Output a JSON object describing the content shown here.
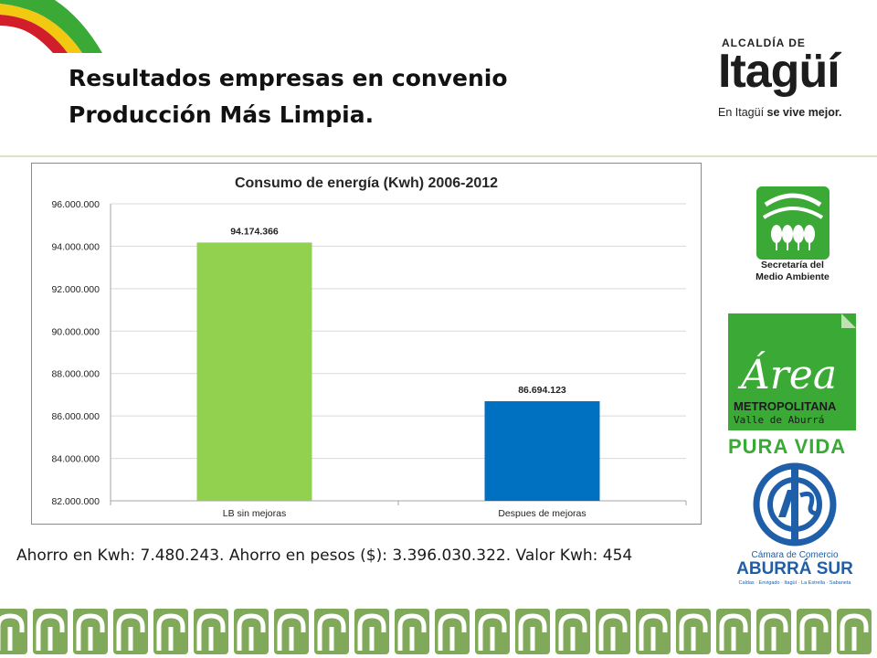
{
  "slide": {
    "title_lines": [
      "Resultados empresas en convenio",
      "Producción Más Limpia."
    ],
    "caption": "Ahorro en Kwh: 7.480.243. Ahorro en pesos ($): 3.396.030.322. Valor Kwh: 454"
  },
  "logos": {
    "alcaldia": {
      "pre": "ALCALDÍA DE",
      "name": "Itagüí",
      "slogan_plain": "En Itagüí ",
      "slogan_bold": "se vive mejor."
    },
    "secretaria": {
      "line1": "Secretaría del",
      "line2": "Medio Ambiente"
    },
    "area_metropolitana": {
      "script": "Área",
      "line1": "METROPOLITANA",
      "line2": "Valle de Aburrá",
      "tagline": "PURA VIDA"
    },
    "camara": {
      "line1": "Cámara de Comercio",
      "line2": "ABURRÁ SUR",
      "line3": "Caldas · Envigado · Itagüí · La Estrella · Sabaneta"
    }
  },
  "colors": {
    "brand_green": "#3aa935",
    "bar_green": "#92d050",
    "bar_blue": "#0070c0",
    "chart_border": "#8a8a8a",
    "grid": "#d9d9d9",
    "footer_green": "#6a9a3c"
  },
  "chart_data": {
    "type": "bar",
    "title": "Consumo de energía (Kwh) 2006-2012",
    "categories": [
      "LB sin mejoras",
      "Despues de mejoras"
    ],
    "values": [
      94174366,
      86694123
    ],
    "value_labels": [
      "94.174.366",
      "86.694.123"
    ],
    "bar_colors": [
      "#92d050",
      "#0070c0"
    ],
    "ylim": [
      82000000,
      96000000
    ],
    "yticks": [
      82000000,
      84000000,
      86000000,
      88000000,
      90000000,
      92000000,
      94000000,
      96000000
    ],
    "ytick_labels": [
      "82.000.000",
      "84.000.000",
      "86.000.000",
      "88.000.000",
      "90.000.000",
      "92.000.000",
      "94.000.000",
      "96.000.000"
    ],
    "xlabel": "",
    "ylabel": "",
    "grid": true,
    "legend": "none"
  }
}
